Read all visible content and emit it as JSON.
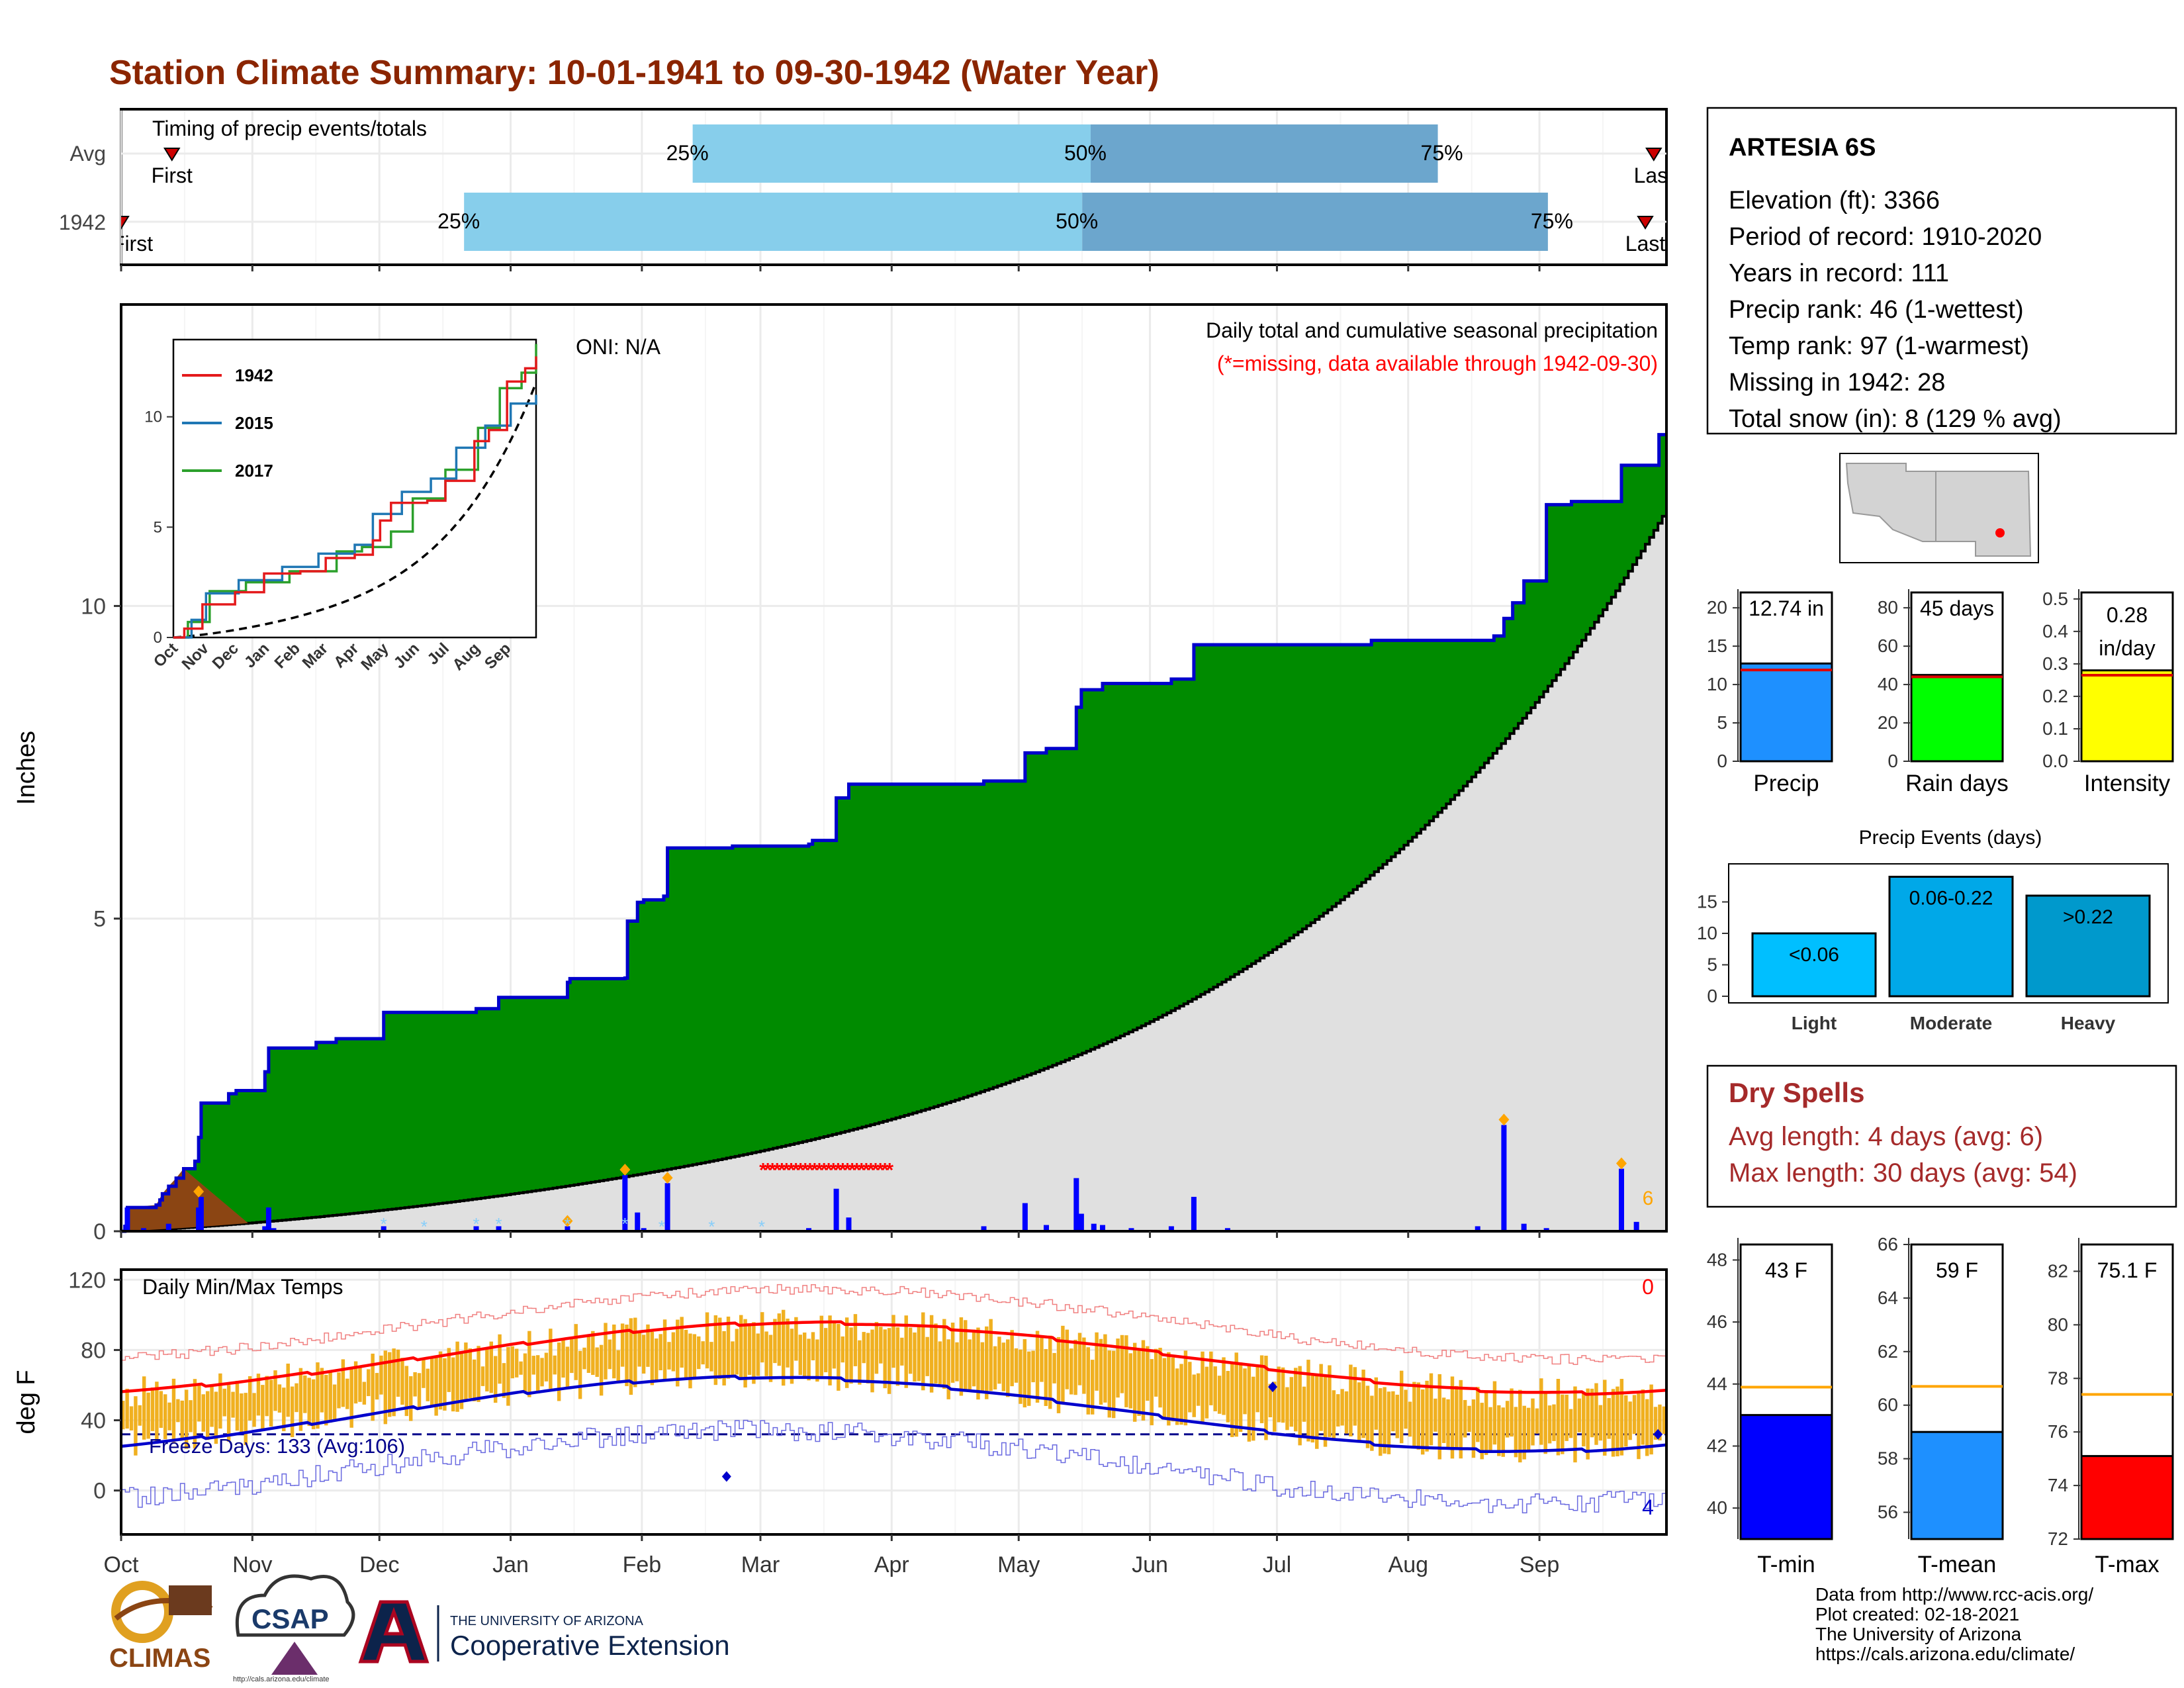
{
  "title": "Station Climate Summary: 10-01-1941 to 09-30-1942 (Water Year)",
  "colors": {
    "title": "#8B2500",
    "precip_light": "#87CEEB",
    "precip_dark": "#6CA6CD",
    "cumulative_above": "#008B00",
    "cumulative_below": "#8B4513",
    "avg_fill": "#E0E0E0",
    "daily_bar": "#0000FF",
    "temp_bar": "#F0B020",
    "tmax_line": "#FF0000",
    "tmin_line": "#0000CC",
    "dry_spell_text": "#A52A2A"
  },
  "timing_panel": {
    "label": "Timing of precip events/totals",
    "rows": [
      {
        "name": "Avg",
        "first_label": "First",
        "first_day": 12,
        "last_label": "Last",
        "last_day": 362,
        "p25": 135,
        "p50": 229,
        "p75": 311,
        "p25_label": "25%",
        "p50_label": "50%",
        "p75_label": "75%"
      },
      {
        "name": "1942",
        "first_label": "First",
        "first_day": 0,
        "last_label": "Last",
        "last_day": 360,
        "p25": 81,
        "p50": 227,
        "p75": 337,
        "p25_label": "25%",
        "p50_label": "50%",
        "p75_label": "75%"
      }
    ]
  },
  "months": [
    "Oct",
    "Nov",
    "Dec",
    "Jan",
    "Feb",
    "Mar",
    "Apr",
    "May",
    "Jun",
    "Jul",
    "Aug",
    "Sep"
  ],
  "precip_panel": {
    "ylabel": "Inches",
    "oni": "ONI: N/A",
    "subtitle": "Daily total and cumulative seasonal precipitation",
    "missing_note": "(*=missing, data available through 1942-09-30)",
    "missing_count": "6",
    "yticks": [
      "0",
      "5",
      "10"
    ]
  },
  "inset": {
    "legend": [
      "1942",
      "2015",
      "2017"
    ],
    "yticks": [
      "0",
      "5",
      "10"
    ],
    "xticks": [
      "Oct",
      "Nov",
      "Dec",
      "Jan",
      "Feb",
      "Mar",
      "Apr",
      "May",
      "Jun",
      "Jul",
      "Aug",
      "Sep"
    ]
  },
  "temp_panel": {
    "label": "Daily Min/Max Temps",
    "ylabel": "deg F",
    "freeze": "Freeze Days: 133 (Avg:106)",
    "top_count": "0",
    "bottom_count": "4",
    "yticks": [
      "0",
      "40",
      "80",
      "120"
    ]
  },
  "station": {
    "name": "ARTESIA 6S",
    "lines": [
      "Elevation (ft): 3366",
      "Period of record: 1910-2020",
      "Years in record: 111",
      "Precip rank: 46 (1-wettest)",
      "Temp rank: 97 (1-warmest)",
      "Missing in 1942: 28",
      "Total snow (in): 8 (129 % avg)"
    ]
  },
  "mini_bars": [
    {
      "label": "Precip",
      "value_text": "12.74 in",
      "value": 12.74,
      "avg": 11.9,
      "max": 22,
      "ticks": [
        "0",
        "5",
        "10",
        "15",
        "20"
      ],
      "color": "#1E90FF"
    },
    {
      "label": "Rain days",
      "value_text": "45 days",
      "value": 45,
      "avg": 44,
      "max": 88,
      "ticks": [
        "0",
        "20",
        "40",
        "60",
        "80"
      ],
      "color": "#00FF00"
    },
    {
      "label": "Intensity",
      "value_text1": "0.28",
      "value_text2": "in/day",
      "value": 0.28,
      "avg": 0.265,
      "max": 0.52,
      "ticks": [
        "0.0",
        "0.1",
        "0.2",
        "0.3",
        "0.4",
        "0.5"
      ],
      "color": "#FFFF00"
    }
  ],
  "precip_events": {
    "title": "Precip Events (days)",
    "bars": [
      {
        "label": "Light",
        "value_text": "<0.06",
        "value": 10,
        "color": "#00BFFF"
      },
      {
        "label": "Moderate",
        "value_text": "0.06-0.22",
        "value": 19,
        "color": "#00A8E8"
      },
      {
        "label": "Heavy",
        "value_text": ">0.22",
        "value": 16,
        "color": "#0099CC"
      }
    ],
    "ticks": [
      "0",
      "5",
      "10",
      "15"
    ]
  },
  "dry_spells": {
    "title": "Dry Spells",
    "avg_line": "Avg length: 4 days (avg: 6)",
    "max_line": "Max length: 30 days (avg: 54)"
  },
  "temp_bars": [
    {
      "label": "T-min",
      "value_text": "43 F",
      "value": 43,
      "avg": 43.9,
      "min": 39,
      "max": 48.5,
      "ticks": [
        "40",
        "42",
        "44",
        "46",
        "48"
      ],
      "color": "#0000FF"
    },
    {
      "label": "T-mean",
      "value_text": "59 F",
      "value": 59,
      "avg": 60.7,
      "min": 55,
      "max": 66,
      "ticks": [
        "56",
        "58",
        "60",
        "62",
        "64",
        "66"
      ],
      "color": "#1E90FF"
    },
    {
      "label": "T-max",
      "value_text": "75.1 F",
      "value": 75.1,
      "avg": 77.4,
      "min": 72,
      "max": 83,
      "ticks": [
        "72",
        "74",
        "76",
        "78",
        "80",
        "82"
      ],
      "color": "#FF0000"
    }
  ],
  "footer": {
    "lines": [
      "Data from http://www.rcc-acis.org/",
      "Plot created: 02-18-2021",
      "The University of Arizona",
      "https://cals.arizona.edu/climate/"
    ],
    "climas": "CLIMAS",
    "csap": "CSAP",
    "csap_url": "http://cals.arizona.edu/climate",
    "ua_small": "THE UNIVERSITY OF ARIZONA",
    "ua_big": "Cooperative Extension"
  },
  "chart_data": {
    "type": "area",
    "title": "Station Climate Summary: 10-01-1941 to 09-30-1942 (Water Year)",
    "ylabel": "Inches",
    "ylim": [
      0,
      12.74
    ],
    "x": [
      "Oct",
      "Nov",
      "Dec",
      "Jan",
      "Feb",
      "Mar",
      "Apr",
      "May",
      "Jun",
      "Jul",
      "Aug",
      "Sep"
    ],
    "series": [
      {
        "name": "1942",
        "values": [
          0.35,
          2.05,
          2.9,
          3.0,
          3.55,
          3.75,
          6.05,
          6.2,
          7.1,
          8.95,
          9.4,
          12.74
        ]
      }
    ]
  }
}
